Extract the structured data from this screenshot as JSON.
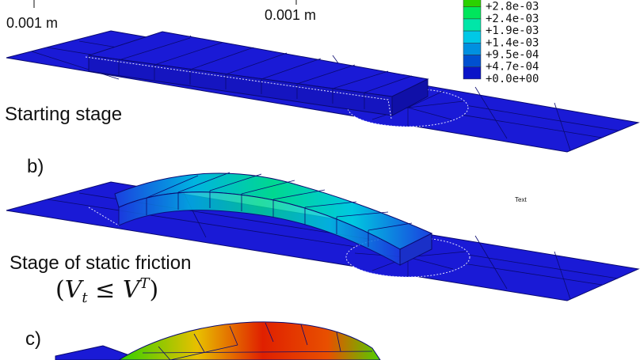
{
  "scale_bars": [
    {
      "label": "0.001 m"
    },
    {
      "label": "0.001 m"
    }
  ],
  "legend": {
    "entries": [
      "+2.8e-03",
      "+2.4e-03",
      "+1.9e-03",
      "+1.4e-03",
      "+9.5e-04",
      "+4.7e-04",
      "+0.0e+00"
    ],
    "colors": [
      "#2bd100",
      "#00e65c",
      "#00e6a8",
      "#00c8e6",
      "#0090e0",
      "#0050d0",
      "#0a14c8"
    ]
  },
  "panels": [
    {
      "stage_label": "Starting stage"
    },
    {
      "letter": "b)",
      "stage_label": "Stage of static friction",
      "condition": "(V_t ≤ V^T)",
      "condition_left": "(",
      "condition_V1": "V",
      "condition_sub": "t",
      "condition_op": " ≤ ",
      "condition_V2": "V",
      "condition_sup": "T",
      "condition_right": ")",
      "note": "Text"
    },
    {
      "letter": "c)"
    }
  ],
  "colors": {
    "plate_blue": "#1a1ad6",
    "mesh_line": "#0a0a70"
  }
}
